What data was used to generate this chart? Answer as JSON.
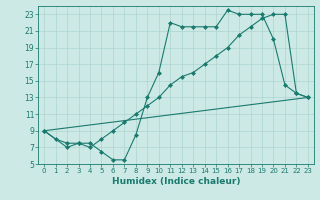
{
  "xlabel": "Humidex (Indice chaleur)",
  "background_color": "#cce9e5",
  "grid_color": "#add4cf",
  "line_color": "#1a7a6e",
  "xlim": [
    -0.5,
    23.5
  ],
  "ylim": [
    5,
    24
  ],
  "yticks": [
    5,
    7,
    9,
    11,
    13,
    15,
    17,
    19,
    21,
    23
  ],
  "xticks": [
    0,
    1,
    2,
    3,
    4,
    5,
    6,
    7,
    8,
    9,
    10,
    11,
    12,
    13,
    14,
    15,
    16,
    17,
    18,
    19,
    20,
    21,
    22,
    23
  ],
  "series1_x": [
    0,
    1,
    2,
    3,
    4,
    5,
    6,
    7,
    8,
    9,
    10,
    11,
    12,
    13,
    14,
    15,
    16,
    17,
    18,
    19,
    20,
    21,
    22,
    23
  ],
  "series1_y": [
    9,
    8,
    7.5,
    7.5,
    7.5,
    6.5,
    5.5,
    5.5,
    8.5,
    13,
    16,
    22,
    21.5,
    21.5,
    21.5,
    21.5,
    23.5,
    23,
    23,
    23,
    20,
    14.5,
    13.5,
    13
  ],
  "series2_x": [
    0,
    2,
    3,
    4,
    5,
    6,
    7,
    8,
    9,
    10,
    11,
    12,
    13,
    14,
    15,
    16,
    17,
    18,
    19,
    20,
    21,
    22,
    23
  ],
  "series2_y": [
    9,
    7,
    7.5,
    7,
    8,
    9,
    10,
    11,
    12,
    13,
    14.5,
    15.5,
    16,
    17,
    18,
    19,
    20.5,
    21.5,
    22.5,
    23,
    23,
    13.5,
    13
  ],
  "series3_x": [
    0,
    23
  ],
  "series3_y": [
    9,
    13
  ]
}
